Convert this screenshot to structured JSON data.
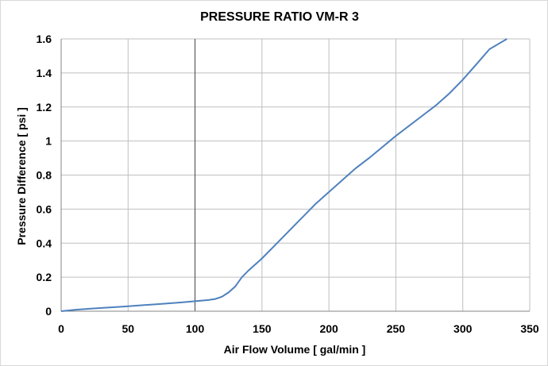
{
  "chart_data": {
    "type": "line",
    "title": "PRESSURE RATIO  VM-R 3",
    "xlabel": "Air Flow Volume  [ gal/min ]",
    "ylabel": "Pressure Difference  [ psi ]",
    "xlim": [
      0,
      350
    ],
    "ylim": [
      0,
      1.6
    ],
    "x_ticks": [
      "0",
      "50",
      "100",
      "150",
      "200",
      "250",
      "300",
      "350"
    ],
    "y_ticks": [
      "0",
      "0.2",
      "0.4",
      "0.6",
      "0.8",
      "1",
      "1.2",
      "1.4",
      "1.6"
    ],
    "grid": true,
    "legend": "none",
    "color": "#4f81bd",
    "series": [
      {
        "x": [
          0,
          10,
          20,
          30,
          40,
          50,
          60,
          70,
          80,
          90,
          100,
          110,
          115,
          120,
          125,
          130,
          135,
          140,
          150,
          160,
          170,
          180,
          190,
          200,
          210,
          220,
          230,
          240,
          250,
          260,
          270,
          280,
          290,
          300,
          310,
          320,
          333
        ],
        "y": [
          0,
          0.008,
          0.014,
          0.019,
          0.024,
          0.029,
          0.035,
          0.04,
          0.046,
          0.052,
          0.059,
          0.066,
          0.072,
          0.085,
          0.11,
          0.145,
          0.2,
          0.24,
          0.31,
          0.39,
          0.47,
          0.55,
          0.63,
          0.7,
          0.77,
          0.84,
          0.9,
          0.965,
          1.03,
          1.09,
          1.15,
          1.21,
          1.28,
          1.36,
          1.45,
          1.54,
          1.6
        ]
      }
    ]
  }
}
